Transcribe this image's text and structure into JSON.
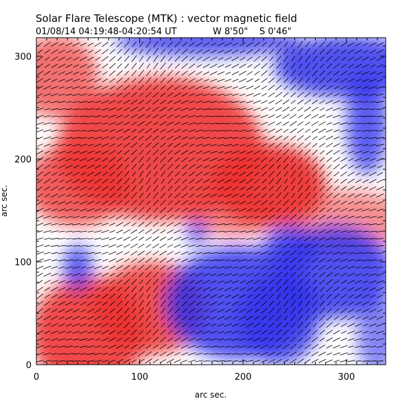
{
  "chart_data": {
    "type": "heatmap",
    "title": "Solar Flare Telescope (MTK) : vector magnetic field",
    "subtitle": {
      "datetime": "01/08/14   04:19:48-04:20:54 UT",
      "lon": "W 8'50\"",
      "lat": "S 0'46\""
    },
    "xlabel": "arc sec.",
    "ylabel": "arc sec.",
    "xlim": [
      0,
      338
    ],
    "ylim": [
      0,
      318
    ],
    "xticks": [
      0,
      100,
      200,
      300
    ],
    "yticks": [
      0,
      100,
      200,
      300
    ],
    "colors": {
      "positive": "#ee3333",
      "negative": "#3333ee",
      "neutral": "#ffffff"
    },
    "regions": [
      {
        "polarity": "positive",
        "center": [
          120,
          210
        ],
        "radius": [
          100,
          70
        ],
        "strength": 0.9
      },
      {
        "polarity": "positive",
        "center": [
          225,
          175
        ],
        "radius": [
          55,
          40
        ],
        "strength": 0.95
      },
      {
        "polarity": "positive",
        "center": [
          40,
          175
        ],
        "radius": [
          50,
          40
        ],
        "strength": 0.8
      },
      {
        "polarity": "positive",
        "center": [
          20,
          280
        ],
        "radius": [
          40,
          40
        ],
        "strength": 0.7
      },
      {
        "polarity": "positive",
        "center": [
          300,
          140
        ],
        "radius": [
          60,
          30
        ],
        "strength": 0.55
      },
      {
        "polarity": "positive",
        "center": [
          50,
          30
        ],
        "radius": [
          55,
          55
        ],
        "strength": 0.9
      },
      {
        "polarity": "positive",
        "center": [
          110,
          55
        ],
        "radius": [
          55,
          45
        ],
        "strength": 0.85
      },
      {
        "polarity": "positive",
        "center": [
          190,
          145
        ],
        "radius": [
          45,
          20
        ],
        "strength": 0.6
      },
      {
        "polarity": "negative",
        "center": [
          195,
          60
        ],
        "radius": [
          70,
          55
        ],
        "strength": 0.85
      },
      {
        "polarity": "negative",
        "center": [
          235,
          45
        ],
        "radius": [
          40,
          45
        ],
        "strength": 0.8
      },
      {
        "polarity": "negative",
        "center": [
          290,
          90
        ],
        "radius": [
          55,
          45
        ],
        "strength": 0.85
      },
      {
        "polarity": "negative",
        "center": [
          245,
          115
        ],
        "radius": [
          25,
          20
        ],
        "strength": 0.85
      },
      {
        "polarity": "negative",
        "center": [
          300,
          290
        ],
        "radius": [
          70,
          30
        ],
        "strength": 0.85
      },
      {
        "polarity": "negative",
        "center": [
          165,
          315
        ],
        "radius": [
          90,
          15
        ],
        "strength": 0.8
      },
      {
        "polarity": "negative",
        "center": [
          320,
          235
        ],
        "radius": [
          20,
          50
        ],
        "strength": 0.8
      },
      {
        "polarity": "negative",
        "center": [
          40,
          95
        ],
        "radius": [
          14,
          22
        ],
        "strength": 0.8
      },
      {
        "polarity": "negative",
        "center": [
          155,
          128
        ],
        "radius": [
          10,
          12
        ],
        "strength": 0.75
      },
      {
        "polarity": "negative",
        "center": [
          330,
          30
        ],
        "radius": [
          20,
          40
        ],
        "strength": 0.6
      }
    ],
    "vectors": {
      "grid_spacing": 7,
      "direction_deg": -30,
      "description": "transverse field vectors drawn as short line segments"
    }
  }
}
